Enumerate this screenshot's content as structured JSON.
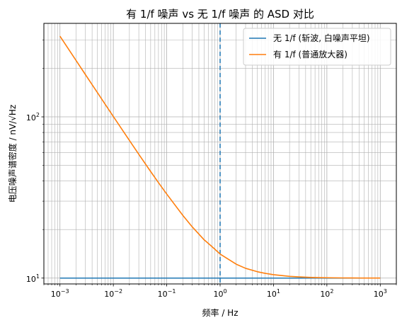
{
  "chart_data": {
    "type": "line",
    "title": "有 1/f 噪声 vs 无 1/f 噪声 的 ASD 对比",
    "xlabel": "频率 / Hz",
    "ylabel": "电压噪声谱密度 / nV/√Hz",
    "xscale": "log",
    "yscale": "log",
    "xlim": [
      0.0005,
      2000
    ],
    "ylim": [
      9.2,
      380
    ],
    "grid": true,
    "legend_position": "top-right",
    "x_tick_labels": [
      {
        "value": 0.001,
        "base": "10",
        "exp": "−3"
      },
      {
        "value": 0.01,
        "base": "10",
        "exp": "−2"
      },
      {
        "value": 0.1,
        "base": "10",
        "exp": "−1"
      },
      {
        "value": 1,
        "base": "10",
        "exp": "0"
      },
      {
        "value": 10,
        "base": "10",
        "exp": "1"
      },
      {
        "value": 100,
        "base": "10",
        "exp": "2"
      },
      {
        "value": 1000,
        "base": "10",
        "exp": "3"
      }
    ],
    "y_tick_labels": [
      {
        "value": 10,
        "base": "10",
        "exp": "1"
      },
      {
        "value": 100,
        "base": "10",
        "exp": "2"
      }
    ],
    "vline": {
      "x": 1,
      "color": "#1f77b4",
      "style": "dashed"
    },
    "series": [
      {
        "name": "无 1/f (斩波, 白噪声平坦)",
        "color": "#1f77b4",
        "x": [
          0.001,
          1000
        ],
        "y": [
          10,
          10
        ]
      },
      {
        "name": "有 1/f (普通放大器)",
        "color": "#ff7f0e",
        "x": [
          0.001,
          0.002,
          0.003,
          0.005,
          0.007,
          0.01,
          0.02,
          0.03,
          0.05,
          0.07,
          0.1,
          0.2,
          0.3,
          0.5,
          0.7,
          1,
          2,
          3,
          5,
          7,
          10,
          20,
          30,
          50,
          70,
          100,
          200,
          300,
          500,
          700,
          1000
        ],
        "y": [
          316.4,
          223.8,
          182.8,
          141.8,
          119.9,
          100.5,
          71.4,
          58.6,
          45.8,
          39.1,
          33.2,
          24.5,
          20.8,
          17.3,
          15.7,
          14.1,
          12.2,
          11.5,
          10.95,
          10.7,
          10.5,
          10.25,
          10.17,
          10.1,
          10.07,
          10.05,
          10.025,
          10.017,
          10.01,
          10.007,
          10.005
        ]
      }
    ]
  }
}
